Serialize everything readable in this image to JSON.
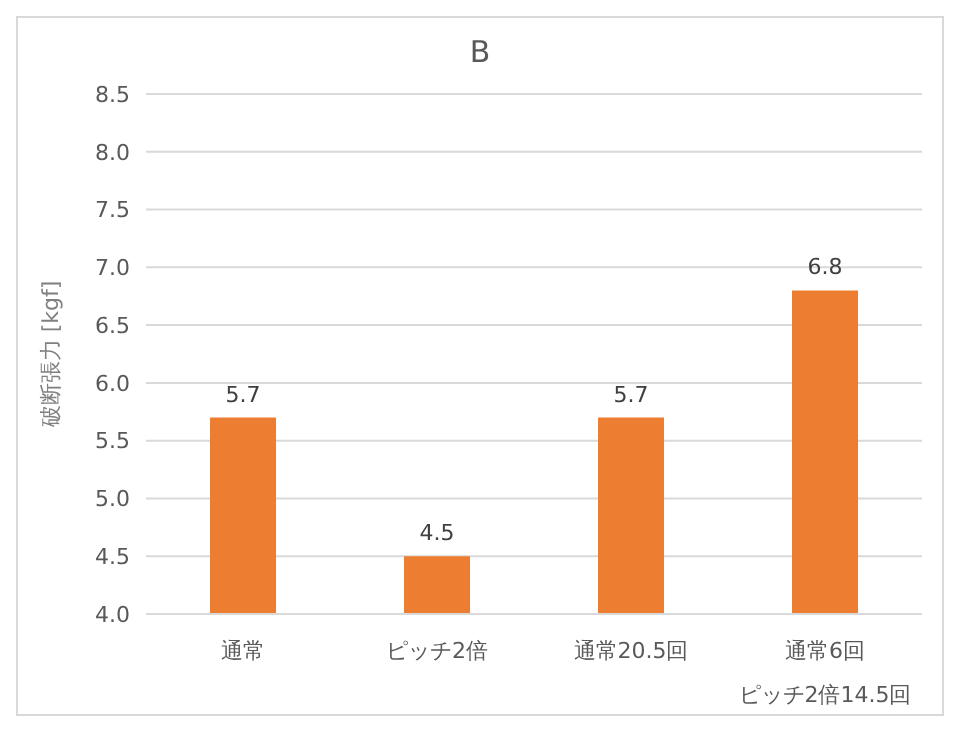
{
  "chart_data": {
    "type": "bar",
    "title": "B",
    "ylabel": "破断張力 [kgf]",
    "categories": [
      "通常",
      "ピッチ2倍",
      "通常20.5回",
      "通常6回ピッチ2倍14.5回"
    ],
    "values": [
      5.7,
      4.5,
      5.7,
      6.8
    ],
    "color": "#ed7d31",
    "ylim": [
      4,
      8.5
    ],
    "yticks": [
      {
        "value": 4,
        "label": "4.0"
      },
      4.5,
      {
        "value": 5,
        "label": "5.0"
      },
      5.5,
      {
        "value": 6,
        "label": "6.0"
      },
      6.5,
      {
        "value": 7,
        "label": "7.0"
      },
      7.5,
      {
        "value": 8,
        "label": "8.0"
      },
      8.5
    ],
    "grid": "y",
    "data_labels": true,
    "legend": false
  }
}
